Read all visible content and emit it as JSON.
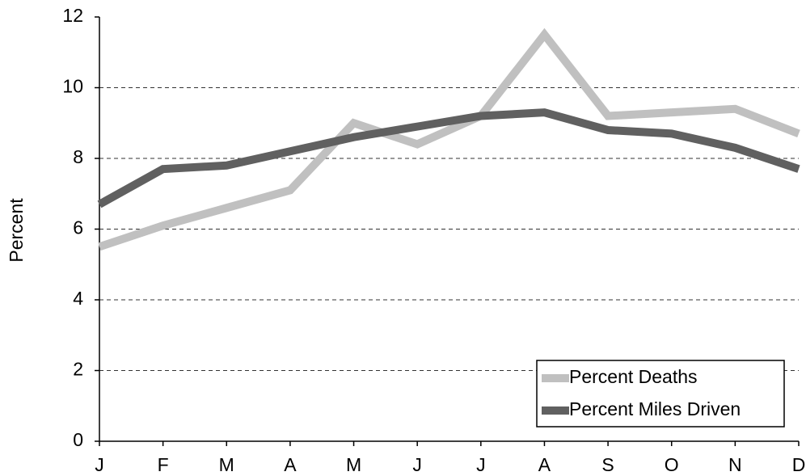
{
  "chart_data": {
    "type": "line",
    "y_label": "Percent",
    "categories": [
      "J",
      "F",
      "M",
      "A",
      "M",
      "J",
      "J",
      "A",
      "S",
      "O",
      "N",
      "D"
    ],
    "series": [
      {
        "name": "Percent Deaths",
        "color": "#c0c0c0",
        "values": [
          5.5,
          6.1,
          6.6,
          7.1,
          9.0,
          8.4,
          9.2,
          11.5,
          9.2,
          9.3,
          9.4,
          8.7
        ]
      },
      {
        "name": "Percent Miles Driven",
        "color": "#606060",
        "values": [
          6.7,
          7.7,
          7.8,
          8.2,
          8.6,
          8.9,
          9.2,
          9.3,
          8.8,
          8.7,
          8.3,
          7.7
        ]
      }
    ],
    "ylim": [
      0,
      12
    ],
    "yticks": [
      0,
      2,
      4,
      6,
      8,
      10,
      12
    ],
    "grid": true,
    "legend": "lower right"
  }
}
